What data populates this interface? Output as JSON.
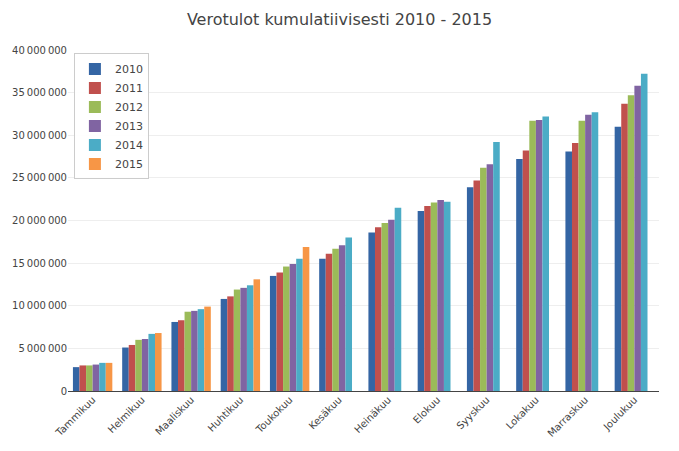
{
  "chart_data": {
    "type": "bar",
    "title": "Verotulot kumulatiivisesti 2010 - 2015",
    "categories": [
      "Tammikuu",
      "Helmikuu",
      "Maaliskuu",
      "Huhtikuu",
      "Toukokuu",
      "Kesäkuu",
      "Heinäkuu",
      "Elokuu",
      "Syyskuu",
      "Lokakuu",
      "Marraskuu",
      "Joulukuu"
    ],
    "series": [
      {
        "name": "2010",
        "color": "#3465a4",
        "values": [
          2800000,
          5100000,
          8100000,
          10800000,
          13500000,
          15500000,
          18600000,
          21100000,
          23900000,
          27200000,
          28100000,
          31000000
        ]
      },
      {
        "name": "2011",
        "color": "#c0504d",
        "values": [
          3000000,
          5400000,
          8300000,
          11100000,
          13900000,
          16100000,
          19200000,
          21700000,
          24700000,
          28200000,
          29100000,
          33700000
        ]
      },
      {
        "name": "2012",
        "color": "#9bbb59",
        "values": [
          3000000,
          6000000,
          9300000,
          11900000,
          14600000,
          16700000,
          19700000,
          22100000,
          26200000,
          31700000,
          31700000,
          34700000
        ]
      },
      {
        "name": "2013",
        "color": "#8064a2",
        "values": [
          3100000,
          6100000,
          9400000,
          12100000,
          14900000,
          17100000,
          20100000,
          22400000,
          26600000,
          31800000,
          32400000,
          35800000
        ]
      },
      {
        "name": "2014",
        "color": "#4bacc6",
        "values": [
          3300000,
          6700000,
          9600000,
          12400000,
          15500000,
          18000000,
          21500000,
          22200000,
          29200000,
          32200000,
          32700000,
          37200000
        ]
      },
      {
        "name": "2015",
        "color": "#f79646",
        "values": [
          3300000,
          6800000,
          9900000,
          13100000,
          16900000,
          0,
          0,
          0,
          0,
          0,
          0,
          0
        ]
      }
    ],
    "ylim": [
      0,
      40000000
    ],
    "yticks": [
      0,
      {
        "value": 5000000,
        "label": "5 000 000"
      },
      {
        "value": 10000000,
        "label": "10 000 000"
      },
      {
        "value": 15000000,
        "label": "15 000 000"
      },
      {
        "value": 20000000,
        "label": "20 000 000"
      },
      {
        "value": 25000000,
        "label": "25 000 000"
      },
      {
        "value": 30000000,
        "label": "30 000 000"
      },
      {
        "value": 35000000,
        "label": "35 000 000"
      },
      {
        "value": 40000000,
        "label": "40 000 000"
      }
    ],
    "grid": true,
    "legend": "upper left"
  }
}
